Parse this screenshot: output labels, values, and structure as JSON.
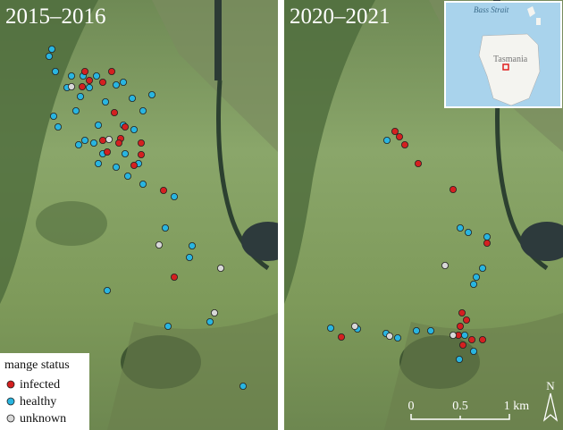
{
  "panels": [
    {
      "title": "2015–2016"
    },
    {
      "title": "2020–2021"
    }
  ],
  "inset": {
    "labels": [
      "Bass Strait",
      "Tasmania"
    ]
  },
  "legend": {
    "title": "mange status",
    "items": [
      "infected",
      "healthy",
      "unknown"
    ]
  },
  "scale_bar": {
    "labels": [
      "0",
      "0.5",
      "1 km"
    ]
  },
  "north_arrow": "N"
}
